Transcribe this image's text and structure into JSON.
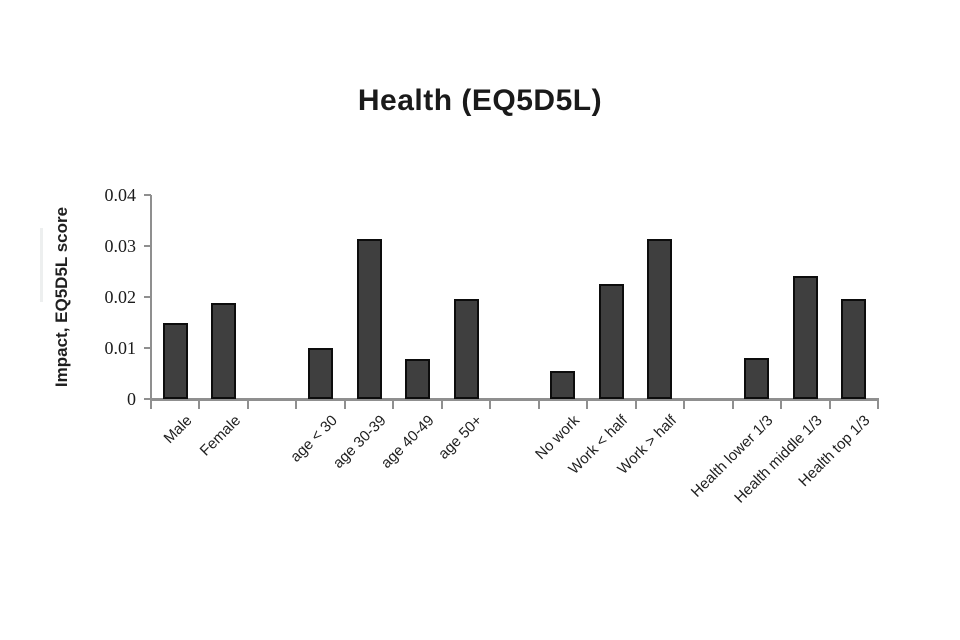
{
  "chart_data": {
    "type": "bar",
    "title": "Health (EQ5D5L)",
    "xlabel": "",
    "ylabel": "Impact, EQ5D5L score",
    "ylim": [
      0,
      0.04
    ],
    "yticks": [
      0,
      0.01,
      0.02,
      0.03,
      0.04
    ],
    "ytick_labels": [
      "0",
      "0.01",
      "0.02",
      "0.03",
      "0.04"
    ],
    "grid": false,
    "legend": null,
    "categories": [
      "Male",
      "Female",
      "age < 30",
      "age 30-39",
      "age 40-49",
      "age 50+",
      "No work",
      "Work < half",
      "Work > half",
      "Health lower 1/3",
      "Health middle 1/3",
      "Health top 1/3"
    ],
    "values": [
      0.0149,
      0.0188,
      0.01,
      0.0315,
      0.0078,
      0.0197,
      0.0055,
      0.0226,
      0.0315,
      0.008,
      0.0242,
      0.0196
    ],
    "groups": [
      [
        "Male",
        "Female"
      ],
      [
        "age < 30",
        "age 30-39",
        "age 40-49",
        "age 50+"
      ],
      [
        "No work",
        "Work < half",
        "Work > half"
      ],
      [
        "Health lower 1/3",
        "Health middle 1/3",
        "Health top 1/3"
      ]
    ],
    "slot_of_bar": [
      0,
      1,
      3,
      4,
      5,
      6,
      8,
      9,
      10,
      12,
      13,
      14
    ],
    "n_slots": 15,
    "bar_color": "#3f3f3f",
    "bar_border_color": "#0d0d0d",
    "axis_color": "#8f8f8f",
    "text_color": "#1f1f1f"
  }
}
